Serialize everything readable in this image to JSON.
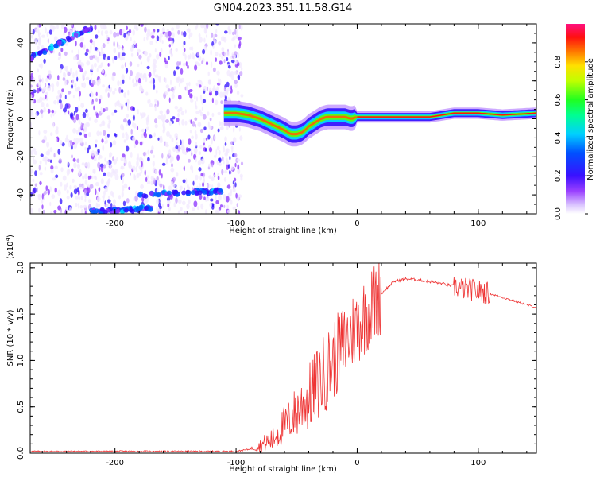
{
  "figure": {
    "title": "GN04.2023.351.11.58.G14"
  },
  "chart_data": [
    {
      "type": "heatmap",
      "xlabel": "Height of straight line (km)",
      "ylabel": "Frequency (Hz)",
      "xlim": [
        -270,
        148
      ],
      "ylim": [
        -50,
        50
      ],
      "x_ticks": [
        -200,
        -100,
        0,
        100
      ],
      "y_ticks": [
        -40,
        -20,
        0,
        20,
        40
      ],
      "tick_labels_x": [
        "-200",
        "-100",
        "0",
        "100"
      ],
      "tick_labels_y": [
        "-40",
        "-20",
        "0",
        "20",
        "40"
      ],
      "colorbar": {
        "label": "Normalized spectral amplitude",
        "range": [
          0,
          1
        ],
        "ticks": [
          0.0,
          0.2,
          0.4,
          0.6,
          0.8
        ],
        "tick_labels": [
          "0.0",
          "0.2",
          "0.4",
          "0.6",
          "0.8"
        ]
      },
      "ridge": {
        "height_km": [
          -110,
          -100,
          -90,
          -80,
          -70,
          -60,
          -55,
          -50,
          -45,
          -40,
          -35,
          -30,
          -25,
          -20,
          -15,
          -10,
          -5,
          0,
          20,
          40,
          60,
          80,
          100,
          120,
          148
        ],
        "frequency_hz": [
          3,
          3,
          2,
          0,
          -3,
          -6,
          -8,
          -8,
          -7,
          -4,
          -2,
          0,
          1,
          1,
          1,
          1,
          0,
          1,
          1,
          1,
          1,
          3,
          3,
          2,
          3
        ]
      },
      "noise_region_km": [
        -270,
        -100
      ],
      "grid": false
    },
    {
      "type": "line",
      "xlabel": "Height of straight line (km)",
      "ylabel": "SNR (10 * v/v)",
      "y_scale_label": "(x10",
      "y_scale_exponent": "4",
      "y_scale_suffix": ")",
      "xlim": [
        -270,
        148
      ],
      "ylim": [
        0,
        2.05
      ],
      "x_ticks": [
        -200,
        -100,
        0,
        100
      ],
      "y_ticks": [
        0.0,
        0.5,
        1.0,
        1.5,
        2.0
      ],
      "tick_labels_x": [
        "-200",
        "-100",
        "0",
        "100"
      ],
      "tick_labels_y": [
        "0.0",
        "0.5",
        "1.0",
        "1.5",
        "2.0"
      ],
      "series": [
        {
          "color": "#ee3333",
          "x": [
            -270,
            -200,
            -120,
            -100,
            -90,
            -80,
            -70,
            -60,
            -50,
            -40,
            -30,
            -20,
            -10,
            0,
            10,
            20,
            30,
            40,
            50,
            60,
            70,
            80,
            90,
            100,
            110,
            120,
            130,
            140,
            148
          ],
          "y": [
            0.02,
            0.02,
            0.02,
            0.02,
            0.04,
            0.08,
            0.15,
            0.3,
            0.45,
            0.6,
            0.8,
            1.0,
            1.2,
            1.38,
            1.55,
            1.72,
            1.85,
            1.88,
            1.87,
            1.85,
            1.83,
            1.8,
            1.77,
            1.75,
            1.72,
            1.68,
            1.64,
            1.6,
            1.57
          ]
        }
      ],
      "grid": false
    }
  ]
}
